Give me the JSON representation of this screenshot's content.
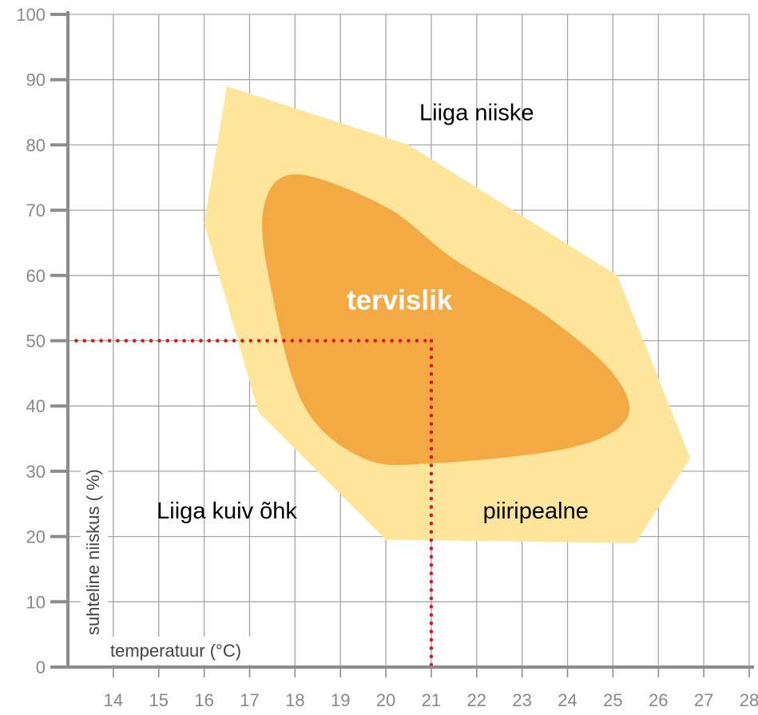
{
  "chart_data": {
    "type": "area",
    "xlabel": "temperatuur (°C)",
    "ylabel": "suhteline niiskus ( %)",
    "xlim": [
      13,
      28
    ],
    "ylim": [
      0,
      100
    ],
    "x_ticks": [
      "14",
      "15",
      "16",
      "17",
      "18",
      "19",
      "20",
      "21",
      "22",
      "23",
      "24",
      "25",
      "26",
      "27",
      "28"
    ],
    "y_ticks": [
      "0",
      "10",
      "20",
      "30",
      "40",
      "50",
      "60",
      "70",
      "80",
      "90",
      "100"
    ],
    "grid": true,
    "regions": [
      {
        "name": "piiripealne",
        "color": "#fde59b",
        "points": [
          [
            16.5,
            89
          ],
          [
            20.5,
            80
          ],
          [
            25.1,
            60
          ],
          [
            26.7,
            32
          ],
          [
            25.5,
            19
          ],
          [
            20.0,
            19.5
          ],
          [
            17.2,
            39
          ],
          [
            16.0,
            68
          ]
        ]
      },
      {
        "name": "tervislik",
        "color": "#f4aa44",
        "points": [
          [
            18.0,
            75.5
          ],
          [
            20.0,
            70.5
          ],
          [
            21.5,
            62.5
          ],
          [
            23.5,
            54
          ],
          [
            25.0,
            45
          ],
          [
            25.3,
            38
          ],
          [
            24.0,
            33.5
          ],
          [
            21.0,
            31.2
          ],
          [
            19.5,
            32
          ],
          [
            18.2,
            40
          ],
          [
            17.5,
            57
          ],
          [
            17.3,
            70
          ]
        ]
      }
    ],
    "annotations": [
      {
        "text": "Liiga niiske",
        "x": 22.0,
        "y": 85
      },
      {
        "text": "tervislik",
        "x": 20.3,
        "y": 56,
        "color": "#ffffff"
      },
      {
        "text": "Liiga kuiv õhk",
        "x": 16.5,
        "y": 24
      },
      {
        "text": "piiripealne",
        "x": 23.3,
        "y": 24
      }
    ],
    "reference_point": {
      "x": 21,
      "y": 50,
      "color": "#e0141e"
    }
  }
}
